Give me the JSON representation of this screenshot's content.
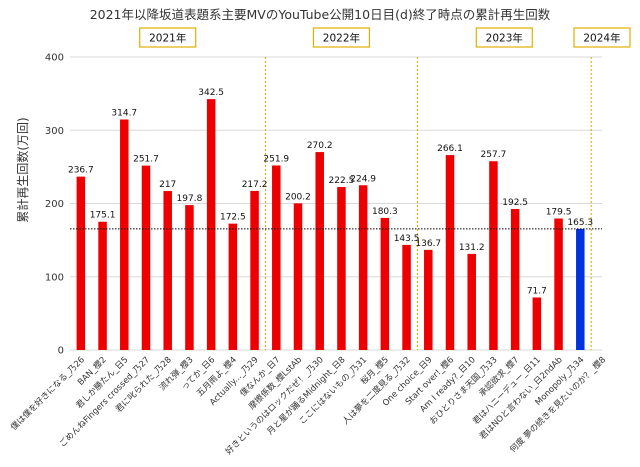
{
  "chart_data": {
    "type": "bar",
    "title": "2021年以降坂道表題系主要MVのYouTube公開10日目(d)終了時点の累計再生回数",
    "ylabel": "累計再生回数(万回)",
    "ylim": [
      0,
      400
    ],
    "yticks": [
      0,
      100,
      200,
      300,
      400
    ],
    "grid": true,
    "reference_line": {
      "value": 165.3,
      "style": "dotted"
    },
    "year_groups": [
      {
        "label": "2021年",
        "start": 0,
        "end": 8
      },
      {
        "label": "2022年",
        "start": 9,
        "end": 15
      },
      {
        "label": "2023年",
        "start": 16,
        "end": 23
      },
      {
        "label": "2024年",
        "start": 24,
        "end": 24
      }
    ],
    "colors": {
      "default": "#ee0000",
      "highlight": "#0033dd",
      "group_border": "#e0b000",
      "divider": "#d4a700"
    },
    "categories": [
      "僕は僕を好きになる_乃26",
      "BAN_櫻2",
      "君しか勝たん_日5",
      "ごめんねFingers crossed_乃27",
      "君に叱られた_乃28",
      "流れ弾_櫻3",
      "ってか_日6",
      "五月雨よ_櫻4",
      "Actually..._乃29",
      "僕なんか_日7",
      "摩擦係数_櫻LstAb",
      "好きというのはロックだぜ！_乃30",
      "月と星が踊るMidnight_日8",
      "ここにはないもの_乃31",
      "桜月_櫻5",
      "人は夢を二度見る_乃32",
      "One choice_日9",
      "Start over!_櫻6",
      "Am I ready?_日10",
      "おひとりさま天国_乃33",
      "承認欲求_櫻7",
      "君はハニーデュー_日11",
      "君はNOと言わない_日2ndAb",
      "Monopoly_乃34",
      "何度 夢の続きを見たいのか？_櫻8"
    ],
    "values": [
      236.7,
      175.1,
      314.7,
      251.7,
      217,
      197.8,
      342.5,
      172.5,
      217.2,
      251.9,
      200.2,
      270.2,
      222.5,
      224.9,
      180.3,
      143.5,
      136.7,
      266.1,
      131.2,
      257.7,
      192.5,
      71.7,
      179.5,
      165.3,
      0
    ],
    "value_labels": [
      "236.7",
      "175.1",
      "314.7",
      "251.7",
      "217",
      "197.8",
      "342.5",
      "172.5",
      "217.2",
      "251.9",
      "200.2",
      "270.2",
      "222.5",
      "224.9",
      "180.3",
      "143.5",
      "136.7",
      "266.1",
      "131.2",
      "257.7",
      "192.5",
      "71.7",
      "179.5",
      "165.3",
      ""
    ],
    "highlight_index": 23
  }
}
